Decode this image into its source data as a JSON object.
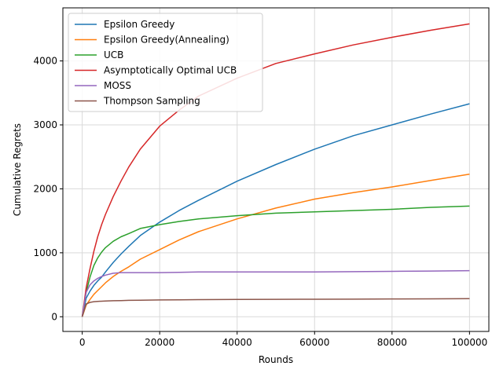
{
  "chart_data": {
    "type": "line",
    "title": "",
    "xlabel": "Rounds",
    "ylabel": "Cumulative Regrets",
    "xlim": [
      -5000,
      105000
    ],
    "ylim": [
      -230,
      4830
    ],
    "xticks": [
      0,
      20000,
      40000,
      60000,
      80000,
      100000
    ],
    "xtick_labels": [
      "0",
      "20000",
      "40000",
      "60000",
      "80000",
      "100000"
    ],
    "yticks": [
      0,
      1000,
      2000,
      3000,
      4000
    ],
    "ytick_labels": [
      "0",
      "1000",
      "2000",
      "3000",
      "4000"
    ],
    "grid": true,
    "legend_position": "top-left",
    "x": [
      0,
      1000,
      2000,
      3000,
      4000,
      5000,
      6000,
      8000,
      10000,
      12000,
      15000,
      20000,
      25000,
      30000,
      40000,
      50000,
      60000,
      70000,
      80000,
      90000,
      100000
    ],
    "series": [
      {
        "name": "Epsilon Greedy",
        "color": "#1f77b4",
        "values": [
          0,
          290,
          400,
          490,
          560,
          620,
          700,
          850,
          980,
          1100,
          1270,
          1480,
          1660,
          1820,
          2120,
          2380,
          2620,
          2830,
          3000,
          3170,
          3330
        ]
      },
      {
        "name": "Epsilon Greedy(Annealing)",
        "color": "#ff7f0e",
        "values": [
          0,
          180,
          270,
          350,
          410,
          470,
          530,
          630,
          710,
          780,
          900,
          1050,
          1200,
          1330,
          1530,
          1700,
          1840,
          1940,
          2030,
          2130,
          2230
        ]
      },
      {
        "name": "UCB",
        "color": "#2ca02c",
        "values": [
          0,
          380,
          620,
          800,
          920,
          1010,
          1080,
          1180,
          1250,
          1300,
          1380,
          1440,
          1490,
          1530,
          1580,
          1620,
          1640,
          1660,
          1680,
          1710,
          1730
        ]
      },
      {
        "name": "Asymptotically Optimal UCB",
        "color": "#d62728",
        "values": [
          0,
          450,
          750,
          1020,
          1250,
          1440,
          1600,
          1880,
          2120,
          2340,
          2620,
          2980,
          3230,
          3450,
          3730,
          3960,
          4110,
          4250,
          4370,
          4480,
          4580
        ]
      },
      {
        "name": "MOSS",
        "color": "#9467bd",
        "values": [
          0,
          380,
          500,
          560,
          600,
          630,
          650,
          680,
          690,
          690,
          690,
          690,
          695,
          700,
          700,
          700,
          700,
          705,
          710,
          715,
          720
        ]
      },
      {
        "name": "Thompson Sampling",
        "color": "#8c564b",
        "values": [
          0,
          200,
          225,
          235,
          240,
          243,
          246,
          250,
          253,
          256,
          258,
          262,
          265,
          267,
          270,
          272,
          273,
          275,
          278,
          280,
          282
        ]
      }
    ]
  }
}
